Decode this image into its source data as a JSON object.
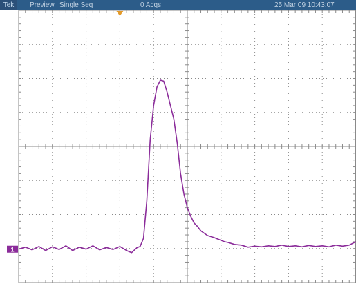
{
  "status_bar": {
    "brand": "Tek",
    "mode": "Preview",
    "acquisition": "Single Seq",
    "acq_count": "0 Acqs",
    "datetime": "25 Mar 09 10:43:07"
  },
  "channel_marker": {
    "label": "1",
    "color": "#8b2c9a"
  },
  "trigger_position_marker": {
    "color": "#e39a2a"
  },
  "colors": {
    "status_bar_bg": "#2c5c89",
    "grid": "#8a8a8a",
    "trace": "#8b2c9a"
  },
  "chart_data": {
    "type": "line",
    "title": "",
    "xlabel": "",
    "ylabel": "",
    "grid": true,
    "xlim": [
      -5,
      5
    ],
    "ylim": [
      -4,
      4
    ],
    "series": [
      {
        "x": [
          -5.0,
          -4.8,
          -4.6,
          -4.4,
          -4.2,
          -4.0,
          -3.8,
          -3.6,
          -3.4,
          -3.2,
          -3.0,
          -2.8,
          -2.6,
          -2.4,
          -2.2,
          -2.0,
          -1.8,
          -1.65,
          -1.5,
          -1.4,
          -1.3,
          -1.2,
          -1.1,
          -1.0,
          -0.9,
          -0.8,
          -0.7,
          -0.6,
          -0.5,
          -0.4,
          -0.3,
          -0.2,
          -0.1,
          0.0,
          0.1,
          0.2,
          0.3,
          0.4,
          0.5,
          0.6,
          0.7,
          0.8,
          0.9,
          1.0,
          1.1,
          1.2,
          1.4,
          1.6,
          1.8,
          2.0,
          2.2,
          2.4,
          2.6,
          2.8,
          3.0,
          3.2,
          3.4,
          3.6,
          3.8,
          4.0,
          4.2,
          4.4,
          4.6,
          4.8,
          5.0
        ],
        "y": [
          -3.02,
          -2.96,
          -3.04,
          -2.94,
          -3.06,
          -2.95,
          -3.03,
          -2.92,
          -3.06,
          -2.96,
          -3.02,
          -2.92,
          -3.04,
          -2.97,
          -3.03,
          -2.94,
          -3.06,
          -3.12,
          -2.98,
          -2.94,
          -2.7,
          -1.6,
          0.2,
          1.2,
          1.75,
          1.95,
          1.92,
          1.6,
          1.2,
          0.8,
          0.1,
          -0.8,
          -1.4,
          -1.8,
          -2.05,
          -2.25,
          -2.35,
          -2.48,
          -2.55,
          -2.62,
          -2.65,
          -2.68,
          -2.72,
          -2.76,
          -2.8,
          -2.82,
          -2.88,
          -2.9,
          -2.96,
          -2.93,
          -2.95,
          -2.92,
          -2.94,
          -2.9,
          -2.94,
          -2.92,
          -2.95,
          -2.91,
          -2.94,
          -2.92,
          -2.95,
          -2.9,
          -2.93,
          -2.9,
          -2.8
        ]
      }
    ]
  }
}
